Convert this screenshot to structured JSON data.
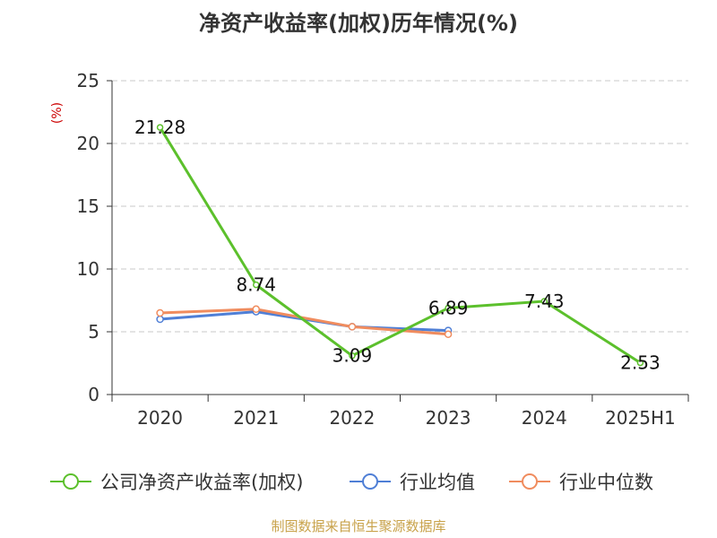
{
  "chart_data": {
    "type": "line",
    "title": "净资产收益率(加权)历年情况(%)",
    "ylabel": "(%)",
    "categories": [
      "2020",
      "2021",
      "2022",
      "2023",
      "2024",
      "2025H1"
    ],
    "ylim": [
      0,
      25
    ],
    "yticks": [
      0,
      5,
      10,
      15,
      20,
      25
    ],
    "grid": true,
    "legend_position": "bottom",
    "series": [
      {
        "name": "公司净资产收益率(加权)",
        "color": "#5cc02c",
        "values": [
          21.28,
          8.74,
          3.09,
          6.89,
          7.43,
          2.53
        ],
        "labels": [
          "21.28",
          "8.74",
          "3.09",
          "6.89",
          "7.43",
          "2.53"
        ]
      },
      {
        "name": "行业均值",
        "color": "#4f7fd6",
        "values": [
          6.0,
          6.6,
          5.4,
          5.1,
          null,
          null
        ]
      },
      {
        "name": "行业中位数",
        "color": "#f08c5e",
        "values": [
          6.5,
          6.8,
          5.4,
          4.8,
          null,
          null
        ]
      }
    ]
  },
  "footer": {
    "source": "制图数据来自恒生聚源数据库"
  }
}
